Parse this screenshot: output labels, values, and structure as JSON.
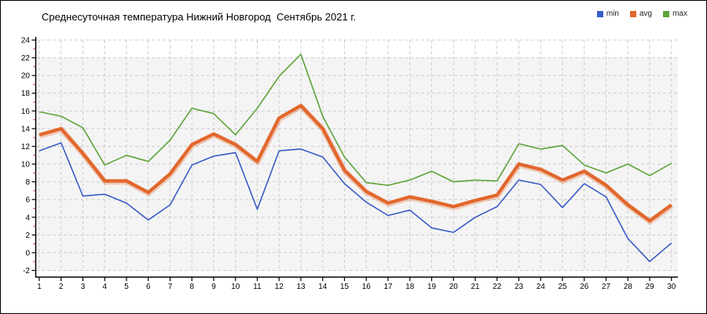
{
  "chart_data": {
    "type": "line",
    "title": "Среднесуточная температура Нижний Новгород  Сентябрь 2021 г.",
    "xlabel": "",
    "ylabel": "",
    "x": [
      1,
      2,
      3,
      4,
      5,
      6,
      7,
      8,
      9,
      10,
      11,
      12,
      13,
      14,
      15,
      16,
      17,
      18,
      19,
      20,
      21,
      22,
      23,
      24,
      25,
      26,
      27,
      28,
      29,
      30
    ],
    "ylim": [
      -2,
      24
    ],
    "ytick_step": 2,
    "grid": true,
    "grid_style": "dashed",
    "legend_position": "top-right",
    "series": [
      {
        "name": "min",
        "color": "#3a5bc7",
        "values": [
          11.5,
          12.4,
          6.4,
          6.6,
          5.6,
          3.7,
          5.4,
          9.9,
          10.9,
          11.3,
          4.9,
          11.5,
          11.7,
          10.8,
          7.8,
          5.7,
          4.2,
          4.8,
          2.8,
          2.3,
          4.0,
          5.2,
          8.2,
          7.7,
          5.1,
          7.8,
          6.3,
          1.6,
          -1.0,
          1.1
        ]
      },
      {
        "name": "avg",
        "color": "#e2662c",
        "values": [
          13.3,
          14.0,
          11.2,
          8.1,
          8.1,
          6.8,
          8.9,
          12.2,
          13.4,
          12.2,
          10.3,
          15.2,
          16.6,
          14.0,
          9.3,
          6.9,
          5.6,
          6.3,
          5.8,
          5.2,
          5.9,
          6.5,
          10.0,
          9.4,
          8.2,
          9.2,
          7.6,
          5.4,
          3.6,
          5.4
        ]
      },
      {
        "name": "max",
        "color": "#5da339",
        "values": [
          15.9,
          15.4,
          14.1,
          9.9,
          11.0,
          10.3,
          12.7,
          16.3,
          15.7,
          13.3,
          16.3,
          19.9,
          22.4,
          15.4,
          10.8,
          7.9,
          7.6,
          8.2,
          9.2,
          8.0,
          8.2,
          8.1,
          12.3,
          11.7,
          12.1,
          9.9,
          9.0,
          10.0,
          8.7,
          10.1
        ]
      }
    ]
  },
  "style": {
    "plot_background": "#f4f4f4",
    "grid_color": "#cdcdcd",
    "axis_color": "#000000",
    "minor_tick_color": "#cc2222",
    "title_color": "#000000",
    "frame_border": "#000000"
  }
}
